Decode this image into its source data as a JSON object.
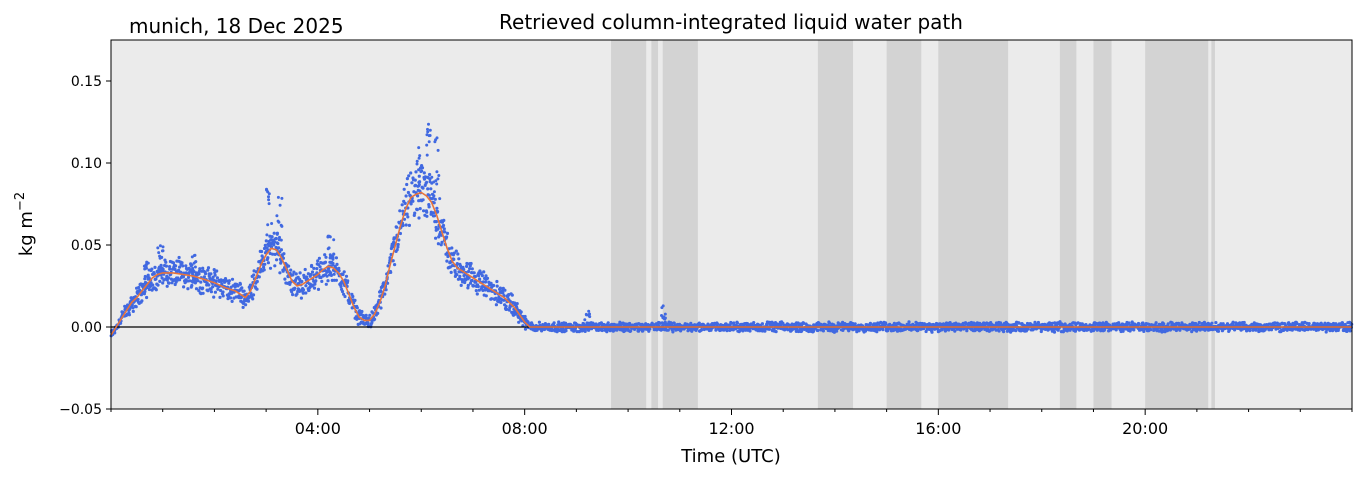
{
  "chart_data": {
    "type": "scatter",
    "title": "Retrieved column-integrated liquid water path",
    "subtitle_left": "munich, 18 Dec 2025",
    "xlabel": "Time (UTC)",
    "ylabel_base": "kg m",
    "ylabel_exp": "−2",
    "xlim": [
      0,
      24
    ],
    "ylim": [
      -0.05,
      0.175
    ],
    "y_ticks": [
      -0.05,
      0.0,
      0.05,
      0.1,
      0.15
    ],
    "y_tick_labels": [
      "−0.05",
      "0.00",
      "0.05",
      "0.10",
      "0.15"
    ],
    "x_ticks": [
      4,
      8,
      12,
      16,
      20
    ],
    "x_tick_labels": [
      "04:00",
      "08:00",
      "12:00",
      "16:00",
      "20:00"
    ],
    "x_minor_ticks": [
      0,
      1,
      2,
      3,
      5,
      6,
      7,
      9,
      10,
      11,
      13,
      14,
      15,
      17,
      18,
      19,
      21,
      22,
      23,
      24
    ],
    "zero_line": 0,
    "grid": false,
    "colors": {
      "background": "#ebebeb",
      "flag_band": "#d3d3d3",
      "points": "#4169e1",
      "smoothed": "#e8743b",
      "zero_line": "#000000"
    },
    "flag_bands": [
      [
        9.67,
        10.35
      ],
      [
        10.45,
        10.58
      ],
      [
        10.67,
        11.35
      ],
      [
        13.67,
        14.35
      ],
      [
        15.0,
        15.67
      ],
      [
        16.0,
        17.35
      ],
      [
        18.35,
        18.67
      ],
      [
        19.0,
        19.35
      ],
      [
        20.0,
        21.22
      ],
      [
        21.28,
        21.35
      ]
    ],
    "series": [
      {
        "kind": "points",
        "x": [
          0.0,
          0.1,
          0.2,
          0.3,
          0.4,
          0.5,
          0.6,
          0.7,
          0.8,
          0.9,
          1.0,
          1.2,
          1.4,
          1.6,
          1.8,
          2.0,
          2.2,
          2.4,
          2.5,
          2.6,
          2.7,
          2.8,
          2.9,
          3.0,
          3.1,
          3.2,
          3.3,
          3.4,
          3.5,
          3.6,
          3.7,
          3.8,
          3.9,
          4.0,
          4.1,
          4.2,
          4.3,
          4.4,
          4.5,
          4.6,
          4.7,
          4.8,
          4.9,
          5.0,
          5.1,
          5.2,
          5.3,
          5.4,
          5.5,
          5.6,
          5.7,
          5.8,
          5.9,
          6.0,
          6.1,
          6.2,
          6.3,
          6.4,
          6.5,
          6.6,
          6.7,
          6.8,
          6.9,
          7.0,
          7.2,
          7.4,
          7.6,
          7.8,
          8.0,
          8.1,
          8.2,
          8.3,
          8.5,
          9.0,
          10.0,
          12.0,
          16.0,
          20.0,
          24.0
        ],
        "y": [
          -0.005,
          0.0,
          0.005,
          0.01,
          0.015,
          0.018,
          0.022,
          0.026,
          0.03,
          0.032,
          0.033,
          0.033,
          0.032,
          0.031,
          0.029,
          0.027,
          0.024,
          0.022,
          0.02,
          0.018,
          0.022,
          0.03,
          0.038,
          0.044,
          0.048,
          0.047,
          0.042,
          0.035,
          0.028,
          0.025,
          0.026,
          0.028,
          0.03,
          0.032,
          0.035,
          0.037,
          0.036,
          0.033,
          0.028,
          0.02,
          0.012,
          0.006,
          0.004,
          0.004,
          0.008,
          0.015,
          0.025,
          0.038,
          0.05,
          0.062,
          0.072,
          0.079,
          0.081,
          0.082,
          0.08,
          0.076,
          0.068,
          0.058,
          0.048,
          0.04,
          0.036,
          0.034,
          0.032,
          0.03,
          0.026,
          0.022,
          0.018,
          0.012,
          0.003,
          0.0,
          0.0,
          0.0,
          0.0,
          0.0,
          0.0,
          0.0,
          0.0,
          0.0,
          0.0
        ]
      },
      {
        "kind": "smoothed",
        "x": [
          0.0,
          0.1,
          0.2,
          0.3,
          0.4,
          0.5,
          0.6,
          0.7,
          0.8,
          0.9,
          1.0,
          1.2,
          1.4,
          1.6,
          1.8,
          2.0,
          2.2,
          2.4,
          2.5,
          2.6,
          2.7,
          2.8,
          2.9,
          3.0,
          3.1,
          3.2,
          3.3,
          3.4,
          3.5,
          3.6,
          3.7,
          3.8,
          3.9,
          4.0,
          4.1,
          4.2,
          4.3,
          4.4,
          4.5,
          4.6,
          4.7,
          4.8,
          4.9,
          5.0,
          5.1,
          5.2,
          5.3,
          5.4,
          5.5,
          5.6,
          5.7,
          5.8,
          5.9,
          6.0,
          6.1,
          6.2,
          6.3,
          6.4,
          6.5,
          6.6,
          6.7,
          6.8,
          6.9,
          7.0,
          7.2,
          7.4,
          7.6,
          7.8,
          8.0,
          8.1,
          8.2,
          8.3,
          8.5,
          9.0,
          10.0,
          12.0,
          16.0,
          20.0,
          24.0
        ],
        "y": [
          -0.005,
          0.0,
          0.005,
          0.01,
          0.015,
          0.018,
          0.022,
          0.026,
          0.03,
          0.032,
          0.033,
          0.033,
          0.032,
          0.031,
          0.029,
          0.027,
          0.024,
          0.022,
          0.02,
          0.018,
          0.022,
          0.03,
          0.038,
          0.044,
          0.048,
          0.047,
          0.042,
          0.035,
          0.028,
          0.025,
          0.026,
          0.028,
          0.03,
          0.032,
          0.035,
          0.037,
          0.036,
          0.033,
          0.028,
          0.02,
          0.012,
          0.006,
          0.004,
          0.004,
          0.008,
          0.015,
          0.025,
          0.038,
          0.05,
          0.062,
          0.072,
          0.079,
          0.081,
          0.082,
          0.08,
          0.076,
          0.068,
          0.058,
          0.048,
          0.04,
          0.036,
          0.034,
          0.032,
          0.03,
          0.026,
          0.022,
          0.018,
          0.012,
          0.003,
          0.0,
          0.0,
          0.0,
          0.0,
          0.0,
          0.0,
          0.0,
          0.0,
          0.0,
          0.0
        ]
      }
    ],
    "spikes": [
      {
        "x": 3.05,
        "y": 0.085
      },
      {
        "x": 3.25,
        "y": 0.08
      },
      {
        "x": 4.25,
        "y": 0.056
      },
      {
        "x": 5.95,
        "y": 0.112
      },
      {
        "x": 6.15,
        "y": 0.125
      },
      {
        "x": 6.3,
        "y": 0.118
      },
      {
        "x": 0.7,
        "y": 0.042
      },
      {
        "x": 0.95,
        "y": 0.05
      },
      {
        "x": 1.6,
        "y": 0.046
      },
      {
        "x": 10.7,
        "y": 0.013
      },
      {
        "x": 9.2,
        "y": 0.011
      }
    ]
  }
}
